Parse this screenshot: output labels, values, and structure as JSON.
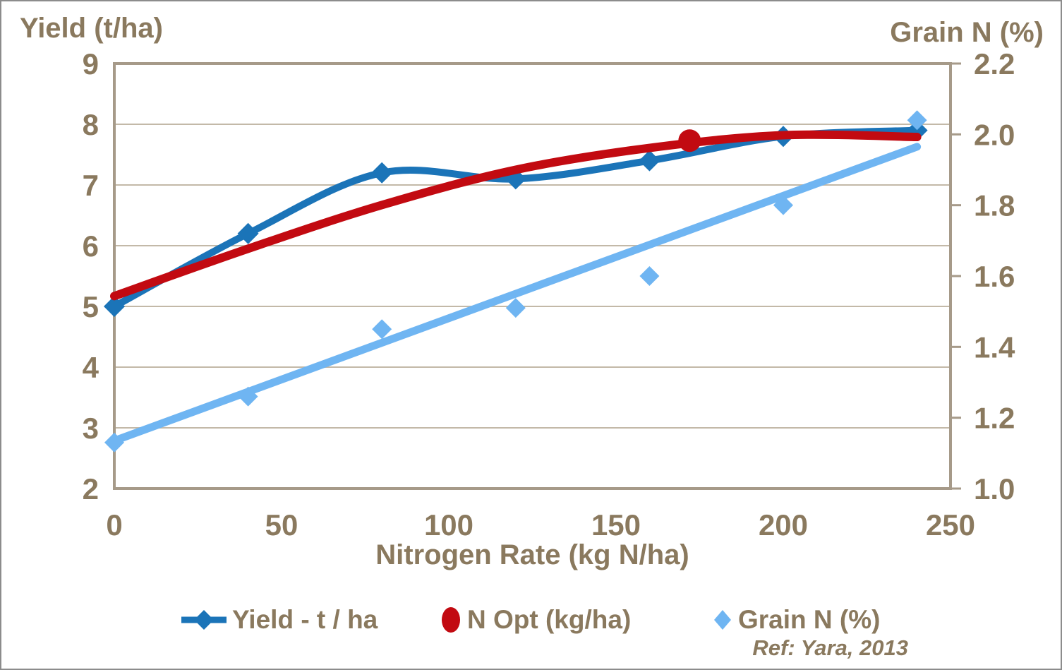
{
  "figure": {
    "left_axis_title": "Yield (t/ha)",
    "right_axis_title": "Grain N (%)",
    "x_axis_title": "Nitrogen Rate (kg N/ha)",
    "footnote": "Ref: Yara, 2013"
  },
  "legend": {
    "items": [
      {
        "label": "Yield - t / ha",
        "marker": "line-diamond",
        "color": "#1B74B8"
      },
      {
        "label": "N Opt (kg/ha)",
        "marker": "circle",
        "color": "#C20A11"
      },
      {
        "label": "Grain N (%)",
        "marker": "diamond",
        "color": "#6FB5F2"
      }
    ]
  },
  "colors": {
    "text_brown": "#8A795E",
    "gridline": "#C3B9A8",
    "plot_frame": "#A69A89",
    "yield_blue": "#1B74B8",
    "nopt_red": "#C20A11",
    "grain_lightblue": "#6FB5F2"
  },
  "chart_data": {
    "type": "line",
    "title": "",
    "x": [
      0,
      40,
      80,
      120,
      160,
      200,
      240
    ],
    "series": [
      {
        "name": "Yield - t / ha",
        "axis": "left",
        "color": "#1B74B8",
        "marker": "diamond",
        "smooth": true,
        "values": [
          5.0,
          6.2,
          7.2,
          7.1,
          7.4,
          7.8,
          7.9
        ]
      },
      {
        "name": "N Opt (kg/ha)",
        "axis": "left",
        "color": "#C20A11",
        "marker": "circle",
        "smooth": true,
        "curve_points": [
          [
            0,
            5.17
          ],
          [
            40,
            5.95
          ],
          [
            80,
            6.67
          ],
          [
            120,
            7.25
          ],
          [
            160,
            7.61
          ],
          [
            200,
            7.82
          ],
          [
            240,
            7.79
          ]
        ],
        "opt_point": {
          "x": 172,
          "y": 7.73
        }
      },
      {
        "name": "Grain N (%)",
        "axis": "right",
        "color": "#6FB5F2",
        "marker": "diamond",
        "values": [
          1.13,
          1.26,
          1.45,
          1.51,
          1.6,
          1.8,
          2.04
        ],
        "trendline": {
          "x1": 0,
          "y1": 1.135,
          "x2": 240,
          "y2": 1.965
        }
      }
    ],
    "x_axis": {
      "title": "Nitrogen Rate (kg N/ha)",
      "min": 0,
      "max": 250,
      "tick_step": 50,
      "ticks": [
        0,
        50,
        100,
        150,
        200,
        250
      ]
    },
    "left_axis": {
      "title": "Yield (t/ha)",
      "min": 2,
      "max": 9,
      "tick_step": 1,
      "ticks": [
        2,
        3,
        4,
        5,
        6,
        7,
        8,
        9
      ]
    },
    "right_axis": {
      "title": "Grain N (%)",
      "min": 1.0,
      "max": 2.2,
      "tick_step": 0.2,
      "ticks": [
        "1.0",
        "1.2",
        "1.4",
        "1.6",
        "1.8",
        "2.0",
        "2.2"
      ]
    },
    "grid": "horizontal",
    "legend_position": "bottom",
    "footnote": "Ref: Yara, 2013"
  }
}
